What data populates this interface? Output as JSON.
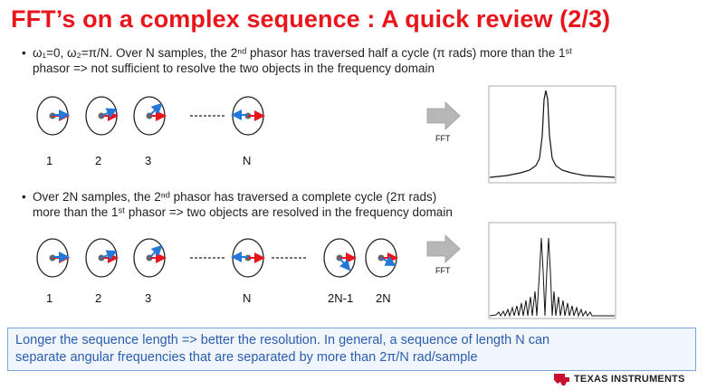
{
  "slide": {
    "title": "FFT’s on a complex sequence : A quick review  (2/3)",
    "bullet1_line1": "ω₁=0, ω₂=π/N.  Over N samples, the 2ⁿᵈ phasor has traversed half a cycle (π rads) more than the 1ˢᵗ",
    "bullet1_line2": "phasor => not sufficient to resolve the two objects in the frequency domain",
    "bullet2_line1": "Over 2N samples, the 2ⁿᵈ phasor has traversed a complete cycle (2π rads)",
    "bullet2_line2": "more than the 1ˢᵗ phasor =>  two objects are resolved in  the frequency domain",
    "bullet_symbol": "•"
  },
  "row1": {
    "labels": [
      "1",
      "2",
      "3",
      "N"
    ],
    "fft_label": "FFT"
  },
  "row2": {
    "labels": [
      "1",
      "2",
      "3",
      "N",
      "2N-1",
      "2N"
    ],
    "fft_label": "FFT"
  },
  "footer": {
    "line1": "Longer the sequence length => better the resolution. In general, a sequence of length N  can",
    "line2": "separate angular frequencies that are separated  by more than 2π/N rad/sample"
  },
  "brand": {
    "name": "Texas Instruments",
    "display": "TEXAS INSTRUMENTS",
    "color": "#c8102e"
  },
  "colors": {
    "title": "#e8161c",
    "phasor1": "#e8161c",
    "phasor2": "#2378d8",
    "footer_text": "#2a5db0"
  }
}
